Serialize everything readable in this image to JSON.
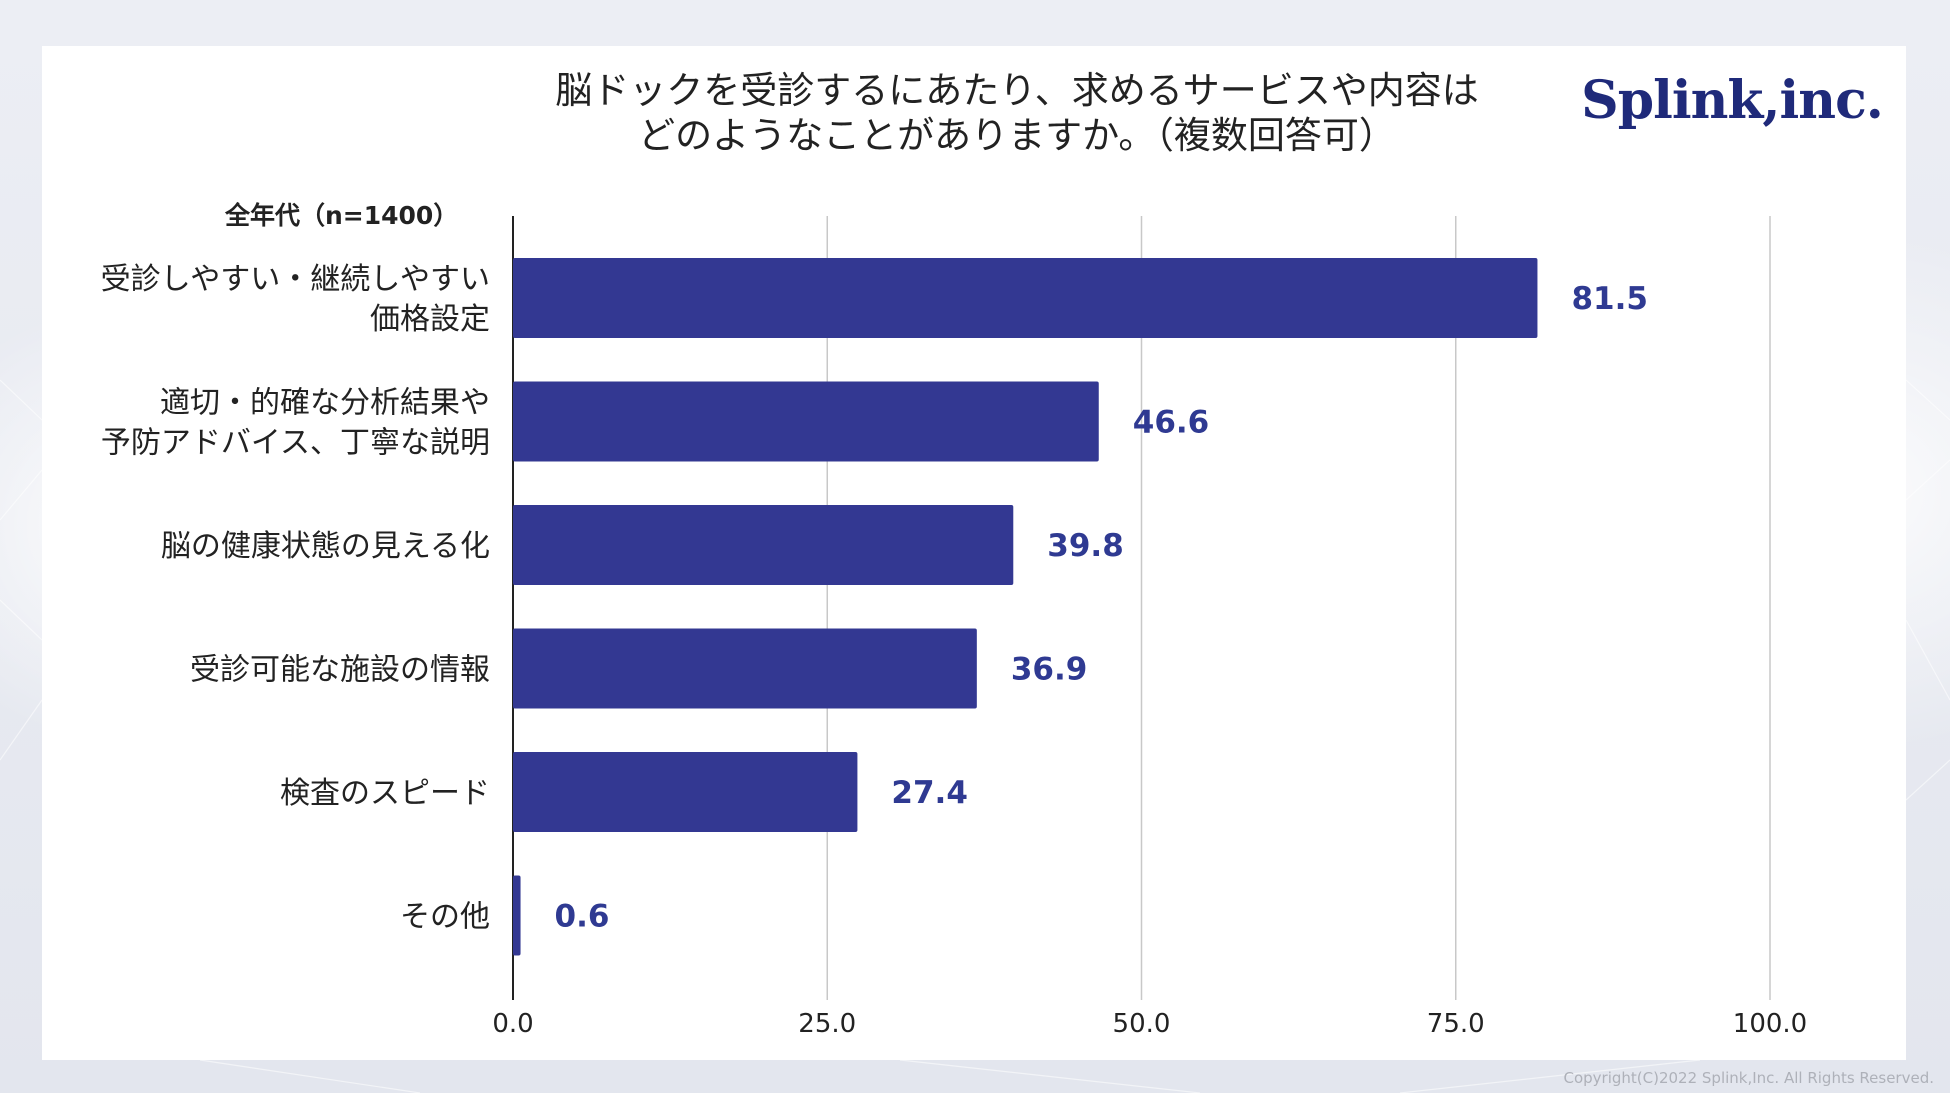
{
  "header": {
    "title_line1": "脳ドックを受診するにあたり、求めるサービスや内容は",
    "title_line2": "どのようなことがありますか。（複数回答可）",
    "logo_text": "Splink,inc."
  },
  "footer": {
    "copyright": "Copyright(C)2022 Splink,Inc. All Rights Reserved."
  },
  "colors": {
    "bar": "#333892",
    "value_label": "#2f3a92",
    "grid": "#c8c8c8",
    "axis": "#222222",
    "text": "#222222"
  },
  "chart_data": {
    "type": "bar",
    "orientation": "horizontal",
    "group_label": "全年代（n=1400）",
    "categories": [
      [
        "受診しやすい・継続しやすい",
        "価格設定"
      ],
      [
        "適切・的確な分析結果や",
        "予防アドバイス、丁寧な説明"
      ],
      [
        "脳の健康状態の見える化"
      ],
      [
        "受診可能な施設の情報"
      ],
      [
        "検査のスピード"
      ],
      [
        "その他"
      ]
    ],
    "values": [
      81.5,
      46.6,
      39.8,
      36.9,
      27.4,
      0.6
    ],
    "value_labels": [
      "81.5",
      "46.6",
      "39.8",
      "36.9",
      "27.4",
      "0.6"
    ],
    "xlim": [
      0,
      100
    ],
    "ticks": [
      0,
      25,
      50,
      75,
      100
    ],
    "tick_labels": [
      "0.0",
      "25.0",
      "50.0",
      "75.0",
      "100.0"
    ],
    "grid": true
  }
}
